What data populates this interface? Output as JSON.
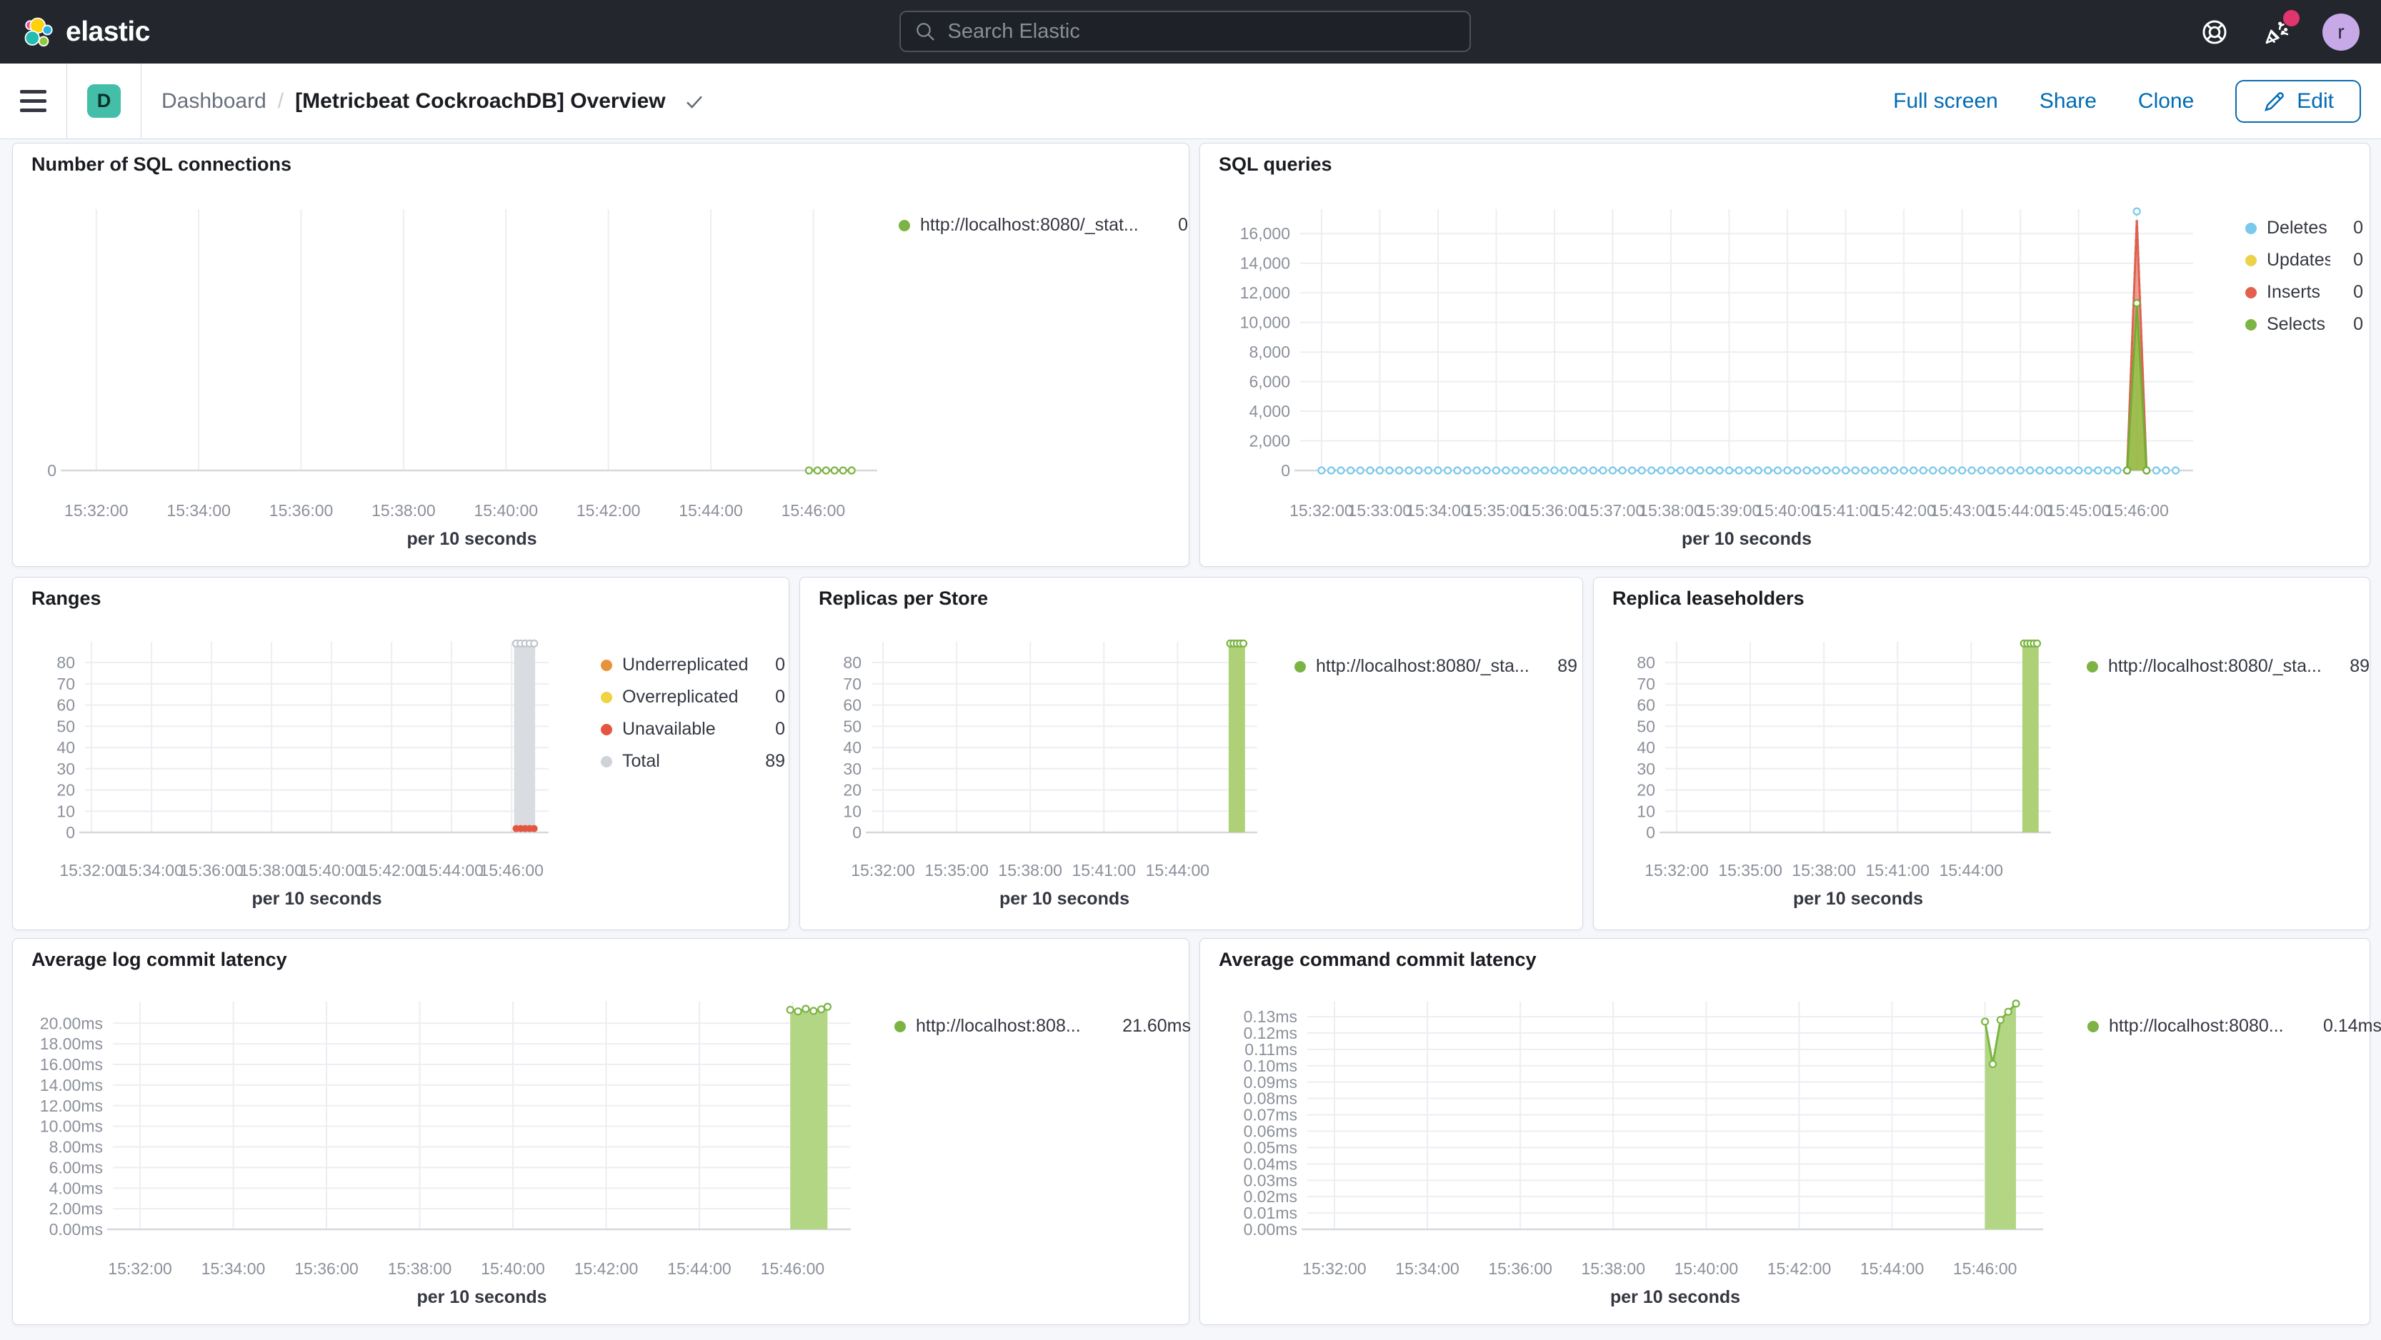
{
  "header": {
    "logo_text": "elastic",
    "search_placeholder": "Search Elastic",
    "avatar_letter": "r"
  },
  "toolbar": {
    "badge": "D",
    "breadcrumb_root": "Dashboard",
    "breadcrumb_sep": "/",
    "title": "[Metricbeat CockroachDB] Overview",
    "actions": [
      "Full screen",
      "Share",
      "Clone"
    ],
    "edit_label": "Edit"
  },
  "charts": [
    {
      "id": "sql-connections",
      "type": "line",
      "title": "Number of SQL connections",
      "x_title": "per 10 seconds",
      "x_domain": [
        25,
        975
      ],
      "y_domain": [
        0,
        10
      ],
      "x_ticks": [
        {
          "t": 60,
          "label": "15:32:00"
        },
        {
          "t": 180,
          "label": "15:34:00"
        },
        {
          "t": 300,
          "label": "15:36:00"
        },
        {
          "t": 420,
          "label": "15:38:00"
        },
        {
          "t": 540,
          "label": "15:40:00"
        },
        {
          "t": 660,
          "label": "15:42:00"
        },
        {
          "t": 780,
          "label": "15:44:00"
        },
        {
          "t": 900,
          "label": "15:46:00"
        }
      ],
      "y_ticks": [
        {
          "v": 0,
          "label": "0"
        }
      ],
      "series": [
        {
          "name": "http://localhost:8080/_stat...",
          "type": "line",
          "color": "#7cb443",
          "marker": true,
          "r": 4.5,
          "points": [
            [
              895,
              0
            ],
            [
              905,
              0
            ],
            [
              915,
              0
            ],
            [
              925,
              0
            ],
            [
              935,
              0
            ],
            [
              945,
              0
            ]
          ]
        }
      ],
      "legend": [
        {
          "color": "#7cb443",
          "label": "http://localhost:8080/_stat...",
          "value": "0"
        }
      ]
    },
    {
      "id": "sql-queries",
      "type": "line",
      "title": "SQL queries",
      "x_title": "per 10 seconds",
      "x_domain": [
        38,
        958
      ],
      "y_domain": [
        0,
        17650
      ],
      "x_ticks": [
        {
          "t": 60,
          "label": "15:32:00"
        },
        {
          "t": 120,
          "label": "15:33:00"
        },
        {
          "t": 180,
          "label": "15:34:00"
        },
        {
          "t": 240,
          "label": "15:35:00"
        },
        {
          "t": 300,
          "label": "15:36:00"
        },
        {
          "t": 360,
          "label": "15:37:00"
        },
        {
          "t": 420,
          "label": "15:38:00"
        },
        {
          "t": 480,
          "label": "15:39:00"
        },
        {
          "t": 540,
          "label": "15:40:00"
        },
        {
          "t": 600,
          "label": "15:41:00"
        },
        {
          "t": 660,
          "label": "15:42:00"
        },
        {
          "t": 720,
          "label": "15:43:00"
        },
        {
          "t": 780,
          "label": "15:44:00"
        },
        {
          "t": 840,
          "label": "15:45:00"
        },
        {
          "t": 900,
          "label": "15:46:00"
        }
      ],
      "y_ticks": [
        {
          "v": 0,
          "label": "0"
        },
        {
          "v": 2000,
          "label": "2,000"
        },
        {
          "v": 4000,
          "label": "4,000"
        },
        {
          "v": 6000,
          "label": "6,000"
        },
        {
          "v": 8000,
          "label": "8,000"
        },
        {
          "v": 10000,
          "label": "10,000"
        },
        {
          "v": 12000,
          "label": "12,000"
        },
        {
          "v": 14000,
          "label": "14,000"
        },
        {
          "v": 16000,
          "label": "16,000"
        }
      ],
      "series": [
        {
          "name": "Deletes",
          "type": "line",
          "color": "#79c9ec",
          "width": 3,
          "dash": "2 7",
          "marker": true,
          "r": 4.5,
          "flat": {
            "t0": 60,
            "t1": 940,
            "step": 10,
            "v": 0
          },
          "points": [
            [
              890,
              0
            ],
            [
              900,
              17500
            ],
            [
              910,
              0
            ]
          ]
        },
        {
          "name": "Inserts",
          "type": "area",
          "color": "#e0604d",
          "fill": "#e7664c",
          "opacity": 0.6,
          "points": [
            [
              890,
              0
            ],
            [
              900,
              16900
            ],
            [
              910,
              0
            ]
          ]
        },
        {
          "name": "Selects",
          "type": "area",
          "color": "#74ac35",
          "fill": "#8ac440",
          "opacity": 0.8,
          "marker": true,
          "r": 4.5,
          "points": [
            [
              890,
              0
            ],
            [
              900,
              11300
            ],
            [
              910,
              0
            ]
          ]
        }
      ],
      "legend": [
        {
          "color": "#79c9ec",
          "label": "Deletes",
          "value": "0"
        },
        {
          "color": "#ecd24a",
          "label": "Updates",
          "value": "0"
        },
        {
          "color": "#e4604e",
          "label": "Inserts",
          "value": "0"
        },
        {
          "color": "#7cb443",
          "label": "Selects",
          "value": "0"
        }
      ]
    },
    {
      "id": "ranges",
      "type": "bar",
      "title": "Ranges",
      "x_title": "per 10 seconds",
      "x_domain": [
        47,
        974
      ],
      "y_domain": [
        0,
        89.8
      ],
      "x_ticks": [
        {
          "t": 60,
          "label": "15:32:00"
        },
        {
          "t": 180,
          "label": "15:34:00"
        },
        {
          "t": 300,
          "label": "15:36:00"
        },
        {
          "t": 420,
          "label": "15:38:00"
        },
        {
          "t": 540,
          "label": "15:40:00"
        },
        {
          "t": 660,
          "label": "15:42:00"
        },
        {
          "t": 780,
          "label": "15:44:00"
        },
        {
          "t": 900,
          "label": "15:46:00"
        }
      ],
      "y_ticks": [
        {
          "v": 0,
          "label": "0"
        },
        {
          "v": 10,
          "label": "10"
        },
        {
          "v": 20,
          "label": "20"
        },
        {
          "v": 30,
          "label": "30"
        },
        {
          "v": 40,
          "label": "40"
        },
        {
          "v": 50,
          "label": "50"
        },
        {
          "v": 60,
          "label": "60"
        },
        {
          "v": 70,
          "label": "70"
        },
        {
          "v": 80,
          "label": "80"
        }
      ],
      "series": [
        {
          "name": "Total",
          "type": "bar",
          "fill": "#d9dce1",
          "t0": 905,
          "t1": 947,
          "v": 89,
          "markers": {
            "stroke": "#c3c6cc",
            "ts": [
              909,
              918,
              927,
              936,
              945
            ]
          }
        },
        {
          "name": "Unavailable",
          "type": "dots",
          "color": "#e4563f",
          "points": [
            [
              909,
              1.8
            ],
            [
              918,
              1.8
            ],
            [
              927,
              1.8
            ],
            [
              936,
              1.8
            ],
            [
              945,
              1.8
            ]
          ]
        }
      ],
      "legend": [
        {
          "color": "#e8923c",
          "label": "Underreplicated",
          "value": "0"
        },
        {
          "color": "#f0d342",
          "label": "Overreplicated",
          "value": "0"
        },
        {
          "color": "#e4563f",
          "label": "Unavailable",
          "value": "0"
        },
        {
          "color": "#cfd3d9",
          "label": "Total",
          "value": "89"
        }
      ]
    },
    {
      "id": "replicas-per-store",
      "type": "bar",
      "title": "Replicas per Store",
      "x_title": "per 10 seconds",
      "x_domain": [
        32,
        975
      ],
      "y_domain": [
        0,
        89.8
      ],
      "x_ticks": [
        {
          "t": 60,
          "label": "15:32:00"
        },
        {
          "t": 240,
          "label": "15:35:00"
        },
        {
          "t": 420,
          "label": "15:38:00"
        },
        {
          "t": 600,
          "label": "15:41:00"
        },
        {
          "t": 780,
          "label": "15:44:00"
        }
      ],
      "y_ticks": [
        {
          "v": 0,
          "label": "0"
        },
        {
          "v": 10,
          "label": "10"
        },
        {
          "v": 20,
          "label": "20"
        },
        {
          "v": 30,
          "label": "30"
        },
        {
          "v": 40,
          "label": "40"
        },
        {
          "v": 50,
          "label": "50"
        },
        {
          "v": 60,
          "label": "60"
        },
        {
          "v": 70,
          "label": "70"
        },
        {
          "v": 80,
          "label": "80"
        }
      ],
      "series": [
        {
          "name": "http://localhost:8080/_sta...",
          "type": "bar",
          "fill": "#aed178",
          "t0": 905,
          "t1": 945,
          "v": 89,
          "markers": {
            "stroke": "#7cb443",
            "ts": [
              909,
              917,
              925,
              933,
              941
            ]
          }
        }
      ],
      "legend": [
        {
          "color": "#7cb443",
          "label": "http://localhost:8080/_sta...",
          "value": "89"
        }
      ]
    },
    {
      "id": "replica-leaseholders",
      "type": "bar",
      "title": "Replica leaseholders",
      "x_title": "per 10 seconds",
      "x_domain": [
        32,
        975
      ],
      "y_domain": [
        0,
        89.8
      ],
      "x_ticks": [
        {
          "t": 60,
          "label": "15:32:00"
        },
        {
          "t": 240,
          "label": "15:35:00"
        },
        {
          "t": 420,
          "label": "15:38:00"
        },
        {
          "t": 600,
          "label": "15:41:00"
        },
        {
          "t": 780,
          "label": "15:44:00"
        }
      ],
      "y_ticks": [
        {
          "v": 0,
          "label": "0"
        },
        {
          "v": 10,
          "label": "10"
        },
        {
          "v": 20,
          "label": "20"
        },
        {
          "v": 30,
          "label": "30"
        },
        {
          "v": 40,
          "label": "40"
        },
        {
          "v": 50,
          "label": "50"
        },
        {
          "v": 60,
          "label": "60"
        },
        {
          "v": 70,
          "label": "70"
        },
        {
          "v": 80,
          "label": "80"
        }
      ],
      "series": [
        {
          "name": "http://localhost:8080/_sta...",
          "type": "bar",
          "fill": "#aed178",
          "t0": 905,
          "t1": 945,
          "v": 89,
          "markers": {
            "stroke": "#7cb443",
            "ts": [
              909,
              917,
              925,
              933,
              941
            ]
          }
        }
      ],
      "legend": [
        {
          "color": "#7cb443",
          "label": "http://localhost:8080/_sta...",
          "value": "89"
        }
      ]
    },
    {
      "id": "log-latency",
      "type": "area",
      "title": "Average log commit latency",
      "x_title": "per 10 seconds",
      "x_domain": [
        25,
        975
      ],
      "y_domain": [
        0,
        22.1
      ],
      "x_ticks": [
        {
          "t": 60,
          "label": "15:32:00"
        },
        {
          "t": 180,
          "label": "15:34:00"
        },
        {
          "t": 300,
          "label": "15:36:00"
        },
        {
          "t": 420,
          "label": "15:38:00"
        },
        {
          "t": 540,
          "label": "15:40:00"
        },
        {
          "t": 660,
          "label": "15:42:00"
        },
        {
          "t": 780,
          "label": "15:44:00"
        },
        {
          "t": 900,
          "label": "15:46:00"
        }
      ],
      "y_ticks": [
        {
          "v": 0,
          "label": "0.00ms"
        },
        {
          "v": 2,
          "label": "2.00ms"
        },
        {
          "v": 4,
          "label": "4.00ms"
        },
        {
          "v": 6,
          "label": "6.00ms"
        },
        {
          "v": 8,
          "label": "8.00ms"
        },
        {
          "v": 10,
          "label": "10.00ms"
        },
        {
          "v": 12,
          "label": "12.00ms"
        },
        {
          "v": 14,
          "label": "14.00ms"
        },
        {
          "v": 16,
          "label": "16.00ms"
        },
        {
          "v": 18,
          "label": "18.00ms"
        },
        {
          "v": 20,
          "label": "20.00ms"
        }
      ],
      "series": [
        {
          "name": "http://localhost:808...",
          "type": "area",
          "color": "#7cb443",
          "fill": "#b3d685",
          "opacity": 1,
          "marker": true,
          "r": 4.5,
          "points": [
            [
              897,
              21.3
            ],
            [
              907,
              21.15
            ],
            [
              917,
              21.4
            ],
            [
              927,
              21.2
            ],
            [
              937,
              21.35
            ],
            [
              945,
              21.6
            ]
          ]
        }
      ],
      "legend": [
        {
          "color": "#7cb443",
          "label": "http://localhost:808...",
          "value": "21.60ms"
        }
      ]
    },
    {
      "id": "cmd-latency",
      "type": "area",
      "title": "Average command commit latency",
      "x_title": "per 10 seconds",
      "x_domain": [
        25,
        975
      ],
      "y_domain": [
        0,
        0.1392
      ],
      "x_ticks": [
        {
          "t": 60,
          "label": "15:32:00"
        },
        {
          "t": 180,
          "label": "15:34:00"
        },
        {
          "t": 300,
          "label": "15:36:00"
        },
        {
          "t": 420,
          "label": "15:38:00"
        },
        {
          "t": 540,
          "label": "15:40:00"
        },
        {
          "t": 660,
          "label": "15:42:00"
        },
        {
          "t": 780,
          "label": "15:44:00"
        },
        {
          "t": 900,
          "label": "15:46:00"
        }
      ],
      "y_ticks": [
        {
          "v": 0,
          "label": "0.00ms"
        },
        {
          "v": 0.01,
          "label": "0.01ms"
        },
        {
          "v": 0.02,
          "label": "0.02ms"
        },
        {
          "v": 0.03,
          "label": "0.03ms"
        },
        {
          "v": 0.04,
          "label": "0.04ms"
        },
        {
          "v": 0.05,
          "label": "0.05ms"
        },
        {
          "v": 0.06,
          "label": "0.06ms"
        },
        {
          "v": 0.07,
          "label": "0.07ms"
        },
        {
          "v": 0.08,
          "label": "0.08ms"
        },
        {
          "v": 0.09,
          "label": "0.09ms"
        },
        {
          "v": 0.1,
          "label": "0.10ms"
        },
        {
          "v": 0.11,
          "label": "0.11ms"
        },
        {
          "v": 0.12,
          "label": "0.12ms"
        },
        {
          "v": 0.13,
          "label": "0.13ms"
        }
      ],
      "series": [
        {
          "name": "http://localhost:8080...",
          "type": "area",
          "color": "#7cb443",
          "fill": "#b3d685",
          "opacity": 1,
          "marker": true,
          "r": 4.5,
          "points": [
            [
              900,
              0.127
            ],
            [
              910,
              0.101
            ],
            [
              920,
              0.128
            ],
            [
              930,
              0.133
            ],
            [
              940,
              0.138
            ]
          ]
        }
      ],
      "legend": [
        {
          "color": "#7cb443",
          "label": "http://localhost:8080...",
          "value": "0.14ms"
        }
      ]
    }
  ]
}
